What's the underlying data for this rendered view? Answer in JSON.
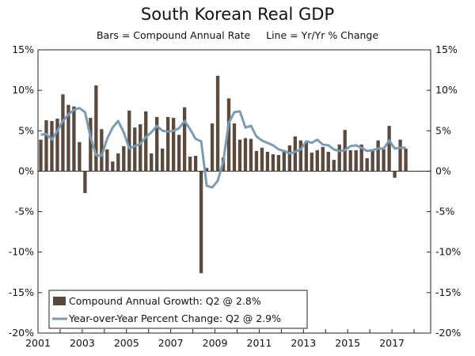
{
  "chart_data": {
    "type": "bar",
    "title": "South Korean Real GDP",
    "subtitle": "Bars = Compound Annual Rate     Line = Yr/Yr % Change",
    "ylim": [
      -20,
      15
    ],
    "yticks": [
      "15%",
      "10%",
      "5%",
      "0%",
      "-5%",
      "-10%",
      "-15%",
      "-20%"
    ],
    "ytick_values": [
      15,
      10,
      5,
      0,
      -5,
      -10,
      -15,
      -20
    ],
    "xticks": [
      "2001",
      "2003",
      "2005",
      "2007",
      "2009",
      "2011",
      "2013",
      "2015",
      "2017"
    ],
    "x_start": "2001 Q1",
    "x_end": "2018 Q2",
    "grid": false,
    "legend_position": "bottom-left",
    "series": [
      {
        "name": "Compound Annual Growth: Q2 @ 2.8%",
        "type": "bar",
        "color": "#5a4a3e",
        "values": [
          3.9,
          6.3,
          6.2,
          6.5,
          9.5,
          8.2,
          8.0,
          3.6,
          -2.7,
          6.6,
          10.6,
          5.2,
          2.7,
          1.2,
          2.2,
          3.1,
          7.5,
          5.4,
          5.8,
          7.4,
          2.2,
          6.7,
          2.8,
          6.7,
          6.6,
          4.5,
          7.9,
          1.8,
          1.9,
          -12.6,
          0.4,
          5.9,
          11.8,
          1.7,
          9.0,
          5.9,
          3.9,
          4.1,
          4.0,
          2.5,
          2.9,
          2.4,
          2.1,
          2.0,
          2.6,
          3.2,
          4.3,
          3.8,
          3.6,
          2.3,
          2.6,
          3.0,
          2.4,
          1.4,
          3.3,
          5.1,
          2.6,
          2.6,
          3.3,
          1.6,
          2.5,
          3.8,
          2.7,
          5.6,
          -0.8,
          3.9,
          2.8
        ]
      },
      {
        "name": "Year-over-Year Percent Change: Q2 @ 2.9%",
        "type": "line",
        "color": "#7b9bb0",
        "values": [
          4.5,
          4.6,
          3.9,
          5.0,
          6.2,
          7.0,
          7.6,
          7.8,
          7.3,
          4.2,
          2.0,
          1.9,
          4.0,
          5.4,
          6.2,
          4.8,
          2.8,
          3.1,
          3.4,
          4.2,
          4.8,
          5.6,
          5.0,
          4.9,
          5.0,
          5.3,
          6.2,
          5.2,
          4.0,
          3.7,
          -1.8,
          -2.0,
          -1.2,
          1.2,
          6.0,
          7.3,
          7.4,
          5.4,
          5.6,
          4.3,
          3.8,
          3.5,
          3.2,
          2.7,
          2.5,
          2.2,
          2.4,
          2.7,
          3.7,
          3.5,
          3.9,
          3.3,
          3.2,
          2.7,
          2.5,
          2.6,
          3.1,
          3.2,
          2.9,
          2.5,
          2.6,
          2.8,
          2.8,
          3.8,
          2.8,
          2.9,
          2.9
        ]
      }
    ]
  }
}
